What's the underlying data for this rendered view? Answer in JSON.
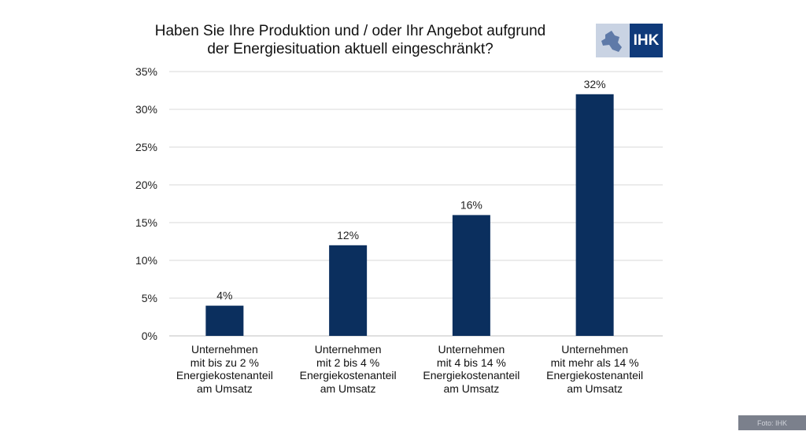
{
  "chart_data": {
    "type": "bar",
    "title": "Haben Sie Ihre Produktion und / oder Ihr Angebot aufgrund der Energiesituation aktuell eingeschränkt?",
    "title_lines": [
      "Haben Sie Ihre Produktion und / oder Ihr Angebot aufgrund",
      "der Energiesituation aktuell eingeschränkt?"
    ],
    "categories": [
      "Unternehmen mit bis zu 2 % Energiekostenanteil am Umsatz",
      "Unternehmen mit 2 bis 4 % Energiekostenanteil am Umsatz",
      "Unternehmen mit 4 bis 14 % Energiekostenanteil am Umsatz",
      "Unternehmen mit mehr als 14 % Energiekostenanteil am Umsatz"
    ],
    "category_lines": [
      [
        "Unternehmen",
        "mit bis zu 2 %",
        "Energiekostenanteil",
        "am Umsatz"
      ],
      [
        "Unternehmen",
        "mit 2 bis 4 %",
        "Energiekostenanteil",
        "am Umsatz"
      ],
      [
        "Unternehmen",
        "mit 4 bis 14 %",
        "Energiekostenanteil",
        "am Umsatz"
      ],
      [
        "Unternehmen",
        "mit mehr als 14 %",
        "Energiekostenanteil",
        "am Umsatz"
      ]
    ],
    "values": [
      4,
      12,
      16,
      32
    ],
    "data_labels": [
      "4%",
      "12%",
      "16%",
      "32%"
    ],
    "ylim": [
      0,
      35
    ],
    "yticks": [
      "0%",
      "5%",
      "10%",
      "15%",
      "20%",
      "25%",
      "30%",
      "35%"
    ],
    "grid": true,
    "bar_color": "#0b2f5e"
  },
  "logo": {
    "text": "IHK",
    "colors": [
      "#c9d3e3",
      "#0f3a7a"
    ]
  },
  "credit": "Foto: IHK"
}
